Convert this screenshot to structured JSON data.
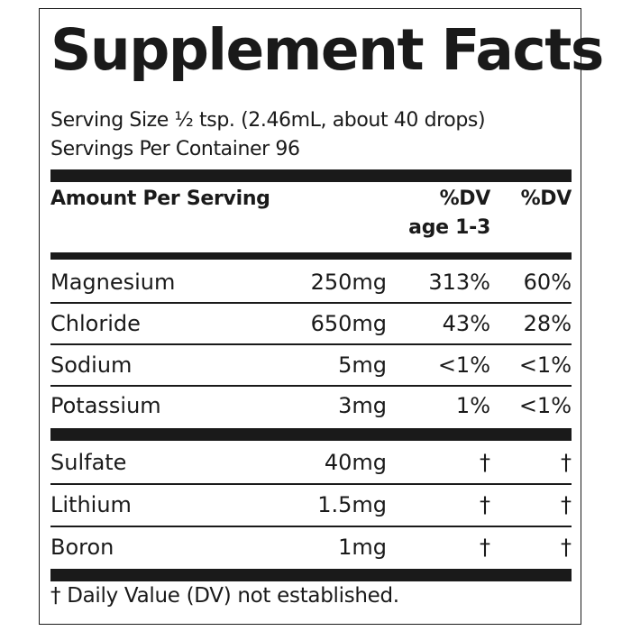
{
  "title": "Supplement Facts",
  "serving_size": "Serving Size ½ tsp. (2.46mL, about 40 drops)",
  "servings_per_container": "Servings Per Container 96",
  "header": {
    "amount_per_serving": "Amount Per Serving",
    "dv_child": "%DV",
    "dv_child_sub": "age 1-3",
    "dv_adult": "%DV"
  },
  "nutrients": [
    {
      "name": "Magnesium",
      "amount": "250mg",
      "dv_child": "313%",
      "dv_adult": "60%"
    },
    {
      "name": "Chloride",
      "amount": "650mg",
      "dv_child": "43%",
      "dv_adult": "28%"
    },
    {
      "name": "Sodium",
      "amount": "5mg",
      "dv_child": "<1%",
      "dv_adult": "<1%"
    },
    {
      "name": "Potassium",
      "amount": "3mg",
      "dv_child": "1%",
      "dv_adult": "<1%"
    }
  ],
  "other": [
    {
      "name": "Sulfate",
      "amount": "40mg",
      "dv_child": "†",
      "dv_adult": "†"
    },
    {
      "name": "Lithium",
      "amount": "1.5mg",
      "dv_child": "†",
      "dv_adult": "†"
    },
    {
      "name": "Boron",
      "amount": "1mg",
      "dv_child": "†",
      "dv_adult": "†"
    }
  ],
  "footnote": "† Daily Value (DV) not established."
}
